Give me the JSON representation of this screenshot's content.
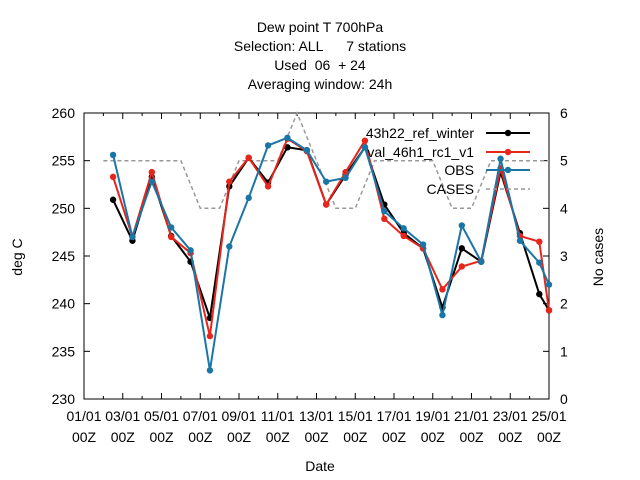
{
  "chart_data": {
    "type": "line",
    "title_lines": [
      "Dew point T 700hPa",
      "Selection: ALL      7 stations",
      "Used  06  + 24",
      "Averaging window: 24h"
    ],
    "xlabel": "Date",
    "ylabel": "deg C",
    "y2label": "No cases",
    "ylim": [
      230,
      260
    ],
    "y2lim": [
      0,
      6
    ],
    "yticks": [
      "230",
      "235",
      "240",
      "245",
      "250",
      "255",
      "260"
    ],
    "y2ticks": [
      "0",
      "1",
      "2",
      "3",
      "4",
      "5",
      "6"
    ],
    "xlim": [
      0,
      24
    ],
    "xticks": [
      {
        "l1": "01/01",
        "l2": "00Z"
      },
      {
        "l1": "03/01",
        "l2": "00Z"
      },
      {
        "l1": "05/01",
        "l2": "00Z"
      },
      {
        "l1": "07/01",
        "l2": "00Z"
      },
      {
        "l1": "09/01",
        "l2": "00Z"
      },
      {
        "l1": "11/01",
        "l2": "00Z"
      },
      {
        "l1": "13/01",
        "l2": "00Z"
      },
      {
        "l1": "15/01",
        "l2": "00Z"
      },
      {
        "l1": "17/01",
        "l2": "00Z"
      },
      {
        "l1": "19/01",
        "l2": "00Z"
      },
      {
        "l1": "21/01",
        "l2": "00Z"
      },
      {
        "l1": "23/01",
        "l2": "00Z"
      },
      {
        "l1": "25/01",
        "l2": "00Z"
      }
    ],
    "x": [
      1.5,
      2.5,
      3.5,
      4.5,
      5.5,
      6.5,
      7.5,
      8.5,
      9.5,
      10.5,
      11.5,
      12.5,
      13.5,
      14.5,
      15.5,
      16.5,
      17.5,
      18.5,
      19.5,
      20.5,
      21.5,
      22.5,
      23.5,
      24.0
    ],
    "legend_position": "top-right",
    "series": [
      {
        "name": "43h22_ref_winter",
        "color": "#000000",
        "values": [
          250.9,
          246.6,
          253.3,
          247.1,
          244.4,
          238.5,
          252.3,
          255.3,
          252.7,
          256.4,
          256.1,
          250.4,
          253.5,
          256.4,
          250.4,
          247.4,
          245.8,
          239.6,
          245.8,
          244.4,
          253.8,
          247.4,
          241.0,
          239.3
        ]
      },
      {
        "name": "val_46h1_rc1_v1",
        "color": "#e8251b",
        "values": [
          253.3,
          247.0,
          253.8,
          247.0,
          245.3,
          236.6,
          252.8,
          255.3,
          252.3,
          257.3,
          256.0,
          250.4,
          253.8,
          257.1,
          248.9,
          247.1,
          245.8,
          241.5,
          243.9,
          244.5,
          254.2,
          247.1,
          246.5,
          239.3
        ]
      },
      {
        "name": "OBS",
        "color": "#1a76a6",
        "values": [
          255.6,
          247.0,
          252.8,
          248.0,
          245.6,
          233.0,
          246.0,
          251.1,
          256.6,
          257.4,
          256.1,
          252.8,
          253.2,
          256.4,
          249.7,
          247.9,
          246.2,
          238.8,
          248.2,
          244.4,
          255.2,
          246.6,
          244.3,
          242.0
        ]
      },
      {
        "name": "CASES",
        "color": "#999999",
        "dashed": true,
        "axis": "y2",
        "x": [
          1,
          2,
          3,
          4,
          5,
          6,
          7,
          8,
          9,
          10,
          11,
          12,
          13,
          14,
          15,
          16,
          17,
          18,
          19,
          20,
          21,
          22,
          23,
          24
        ],
        "values": [
          5,
          5,
          5,
          5,
          5,
          4,
          4,
          5,
          5,
          5,
          6,
          5,
          4,
          4,
          5,
          5,
          5,
          5,
          4,
          4,
          5,
          5,
          5,
          5
        ]
      }
    ]
  }
}
